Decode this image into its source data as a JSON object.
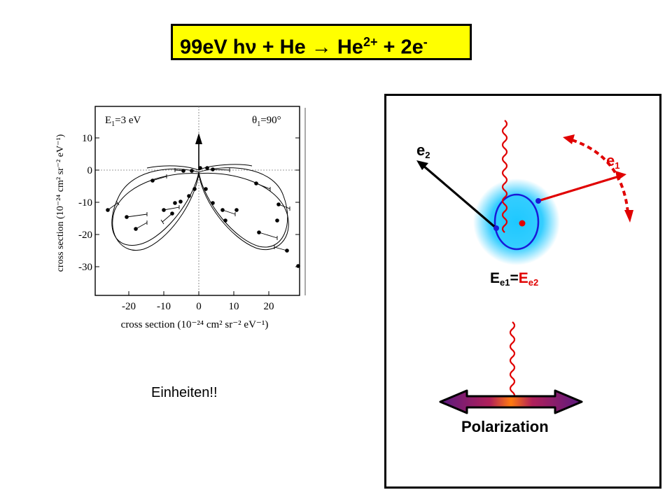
{
  "title": {
    "main": "99eV hν + He → He",
    "charge": "2+",
    "rest": " + 2e",
    "electron_charge": "-"
  },
  "plot": {
    "corner_left": "E",
    "corner_left_sub": "1",
    "corner_left_val": "=3 eV",
    "corner_right": "θ",
    "corner_right_sub": "1",
    "corner_right_val": "=90°",
    "x_label": "cross section (10⁻²⁴ cm² sr⁻² eV⁻¹)",
    "y_label": "cross section (10⁻²⁴ cm² sr⁻² eV⁻¹)",
    "x_ticks": [
      "-20",
      "-10",
      "0",
      "10",
      "20"
    ],
    "y_ticks": [
      "10",
      "0",
      "-10",
      "-20",
      "-30"
    ]
  },
  "caption": "Einheiten!!",
  "diagram": {
    "e2_main": "e",
    "e2_sub": "2",
    "e1_main": "e",
    "e1_sub": "1",
    "energy_left": "E",
    "energy_left_sub": "e1",
    "energy_eq": "=",
    "energy_right": "E",
    "energy_right_sub": "e2",
    "polarization": "Polarization",
    "colors": {
      "electron_red": "#e00000",
      "orbit_blue": "#1a1ad8",
      "glow": "#1ec8ff",
      "arrow_purple": "#7a1aa0"
    }
  }
}
